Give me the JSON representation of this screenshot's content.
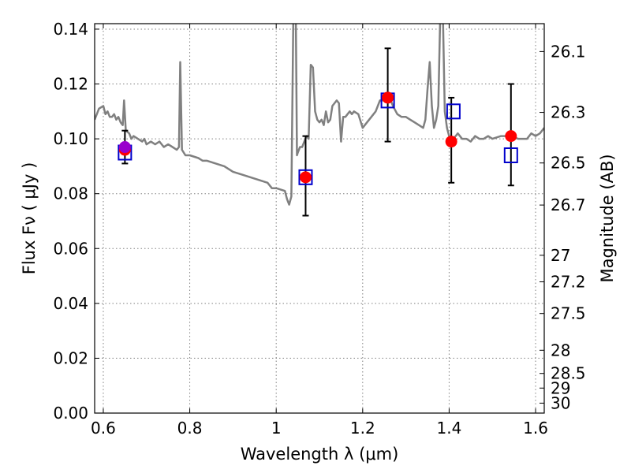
{
  "chart_data": {
    "type": "scatter",
    "xlabel": "Wavelength  λ (μm)",
    "ylabel": "Flux  Fν  ( μJy )",
    "y2label": "Magnitude (AB)",
    "xlim": [
      0.58,
      1.62
    ],
    "ylim": [
      0.0,
      0.142
    ],
    "grid": true,
    "x_ticks": [
      {
        "value": 0.6,
        "label": "0.6"
      },
      {
        "value": 0.8,
        "label": "0.8"
      },
      {
        "value": 1.0,
        "label": "1"
      },
      {
        "value": 1.2,
        "label": "1.2"
      },
      {
        "value": 1.4,
        "label": "1.4"
      },
      {
        "value": 1.6,
        "label": "1.6"
      }
    ],
    "y_ticks": [
      {
        "value": 0.0,
        "label": "0.00"
      },
      {
        "value": 0.02,
        "label": "0.02"
      },
      {
        "value": 0.04,
        "label": "0.04"
      },
      {
        "value": 0.06,
        "label": "0.06"
      },
      {
        "value": 0.08,
        "label": "0.08"
      },
      {
        "value": 0.1,
        "label": "0.10"
      },
      {
        "value": 0.12,
        "label": "0.12"
      },
      {
        "value": 0.14,
        "label": "0.14"
      }
    ],
    "y2_ticks": [
      {
        "value": 26.1,
        "label": "26.1"
      },
      {
        "value": 26.3,
        "label": "26.3"
      },
      {
        "value": 26.5,
        "label": "26.5"
      },
      {
        "value": 26.7,
        "label": "26.7"
      },
      {
        "value": 27.0,
        "label": "27"
      },
      {
        "value": 27.2,
        "label": "27.2"
      },
      {
        "value": 27.5,
        "label": "27.5"
      },
      {
        "value": 28.0,
        "label": "28"
      },
      {
        "value": 28.5,
        "label": "28.5"
      },
      {
        "value": 29.0,
        "label": "29"
      },
      {
        "value": 30.0,
        "label": "30"
      }
    ],
    "series": [
      {
        "kind": "line",
        "color": "#808080",
        "points": [
          [
            0.58,
            0.107
          ],
          [
            0.59,
            0.111
          ],
          [
            0.6,
            0.112
          ],
          [
            0.605,
            0.109
          ],
          [
            0.61,
            0.11
          ],
          [
            0.615,
            0.108
          ],
          [
            0.62,
            0.108
          ],
          [
            0.625,
            0.109
          ],
          [
            0.63,
            0.107
          ],
          [
            0.635,
            0.108
          ],
          [
            0.64,
            0.106
          ],
          [
            0.645,
            0.105
          ],
          [
            0.648,
            0.114
          ],
          [
            0.652,
            0.103
          ],
          [
            0.66,
            0.102
          ],
          [
            0.665,
            0.1
          ],
          [
            0.67,
            0.101
          ],
          [
            0.68,
            0.1
          ],
          [
            0.69,
            0.099
          ],
          [
            0.695,
            0.1
          ],
          [
            0.7,
            0.098
          ],
          [
            0.71,
            0.099
          ],
          [
            0.72,
            0.098
          ],
          [
            0.73,
            0.099
          ],
          [
            0.74,
            0.097
          ],
          [
            0.75,
            0.098
          ],
          [
            0.76,
            0.097
          ],
          [
            0.77,
            0.096
          ],
          [
            0.775,
            0.097
          ],
          [
            0.778,
            0.128
          ],
          [
            0.782,
            0.096
          ],
          [
            0.79,
            0.094
          ],
          [
            0.8,
            0.094
          ],
          [
            0.82,
            0.093
          ],
          [
            0.83,
            0.092
          ],
          [
            0.84,
            0.092
          ],
          [
            0.86,
            0.091
          ],
          [
            0.88,
            0.09
          ],
          [
            0.9,
            0.088
          ],
          [
            0.92,
            0.087
          ],
          [
            0.94,
            0.086
          ],
          [
            0.96,
            0.085
          ],
          [
            0.98,
            0.084
          ],
          [
            0.99,
            0.082
          ],
          [
            1.0,
            0.082
          ],
          [
            1.02,
            0.081
          ],
          [
            1.025,
            0.078
          ],
          [
            1.03,
            0.076
          ],
          [
            1.035,
            0.079
          ],
          [
            1.04,
            0.15
          ],
          [
            1.045,
            0.15
          ],
          [
            1.048,
            0.094
          ],
          [
            1.05,
            0.095
          ],
          [
            1.055,
            0.097
          ],
          [
            1.06,
            0.097
          ],
          [
            1.065,
            0.099
          ],
          [
            1.07,
            0.101
          ],
          [
            1.075,
            0.1
          ],
          [
            1.08,
            0.127
          ],
          [
            1.085,
            0.126
          ],
          [
            1.09,
            0.11
          ],
          [
            1.095,
            0.107
          ],
          [
            1.1,
            0.106
          ],
          [
            1.105,
            0.107
          ],
          [
            1.11,
            0.105
          ],
          [
            1.115,
            0.11
          ],
          [
            1.12,
            0.106
          ],
          [
            1.125,
            0.107
          ],
          [
            1.13,
            0.112
          ],
          [
            1.14,
            0.114
          ],
          [
            1.145,
            0.113
          ],
          [
            1.15,
            0.099
          ],
          [
            1.155,
            0.108
          ],
          [
            1.16,
            0.108
          ],
          [
            1.165,
            0.109
          ],
          [
            1.17,
            0.11
          ],
          [
            1.175,
            0.109
          ],
          [
            1.18,
            0.11
          ],
          [
            1.19,
            0.109
          ],
          [
            1.2,
            0.104
          ],
          [
            1.21,
            0.106
          ],
          [
            1.22,
            0.108
          ],
          [
            1.23,
            0.11
          ],
          [
            1.24,
            0.114
          ],
          [
            1.25,
            0.114
          ],
          [
            1.255,
            0.116
          ],
          [
            1.26,
            0.116
          ],
          [
            1.27,
            0.112
          ],
          [
            1.28,
            0.109
          ],
          [
            1.29,
            0.108
          ],
          [
            1.3,
            0.108
          ],
          [
            1.31,
            0.107
          ],
          [
            1.32,
            0.106
          ],
          [
            1.33,
            0.105
          ],
          [
            1.34,
            0.104
          ],
          [
            1.345,
            0.107
          ],
          [
            1.35,
            0.118
          ],
          [
            1.355,
            0.128
          ],
          [
            1.36,
            0.112
          ],
          [
            1.365,
            0.104
          ],
          [
            1.37,
            0.107
          ],
          [
            1.375,
            0.112
          ],
          [
            1.38,
            0.15
          ],
          [
            1.385,
            0.15
          ],
          [
            1.39,
            0.11
          ],
          [
            1.395,
            0.104
          ],
          [
            1.4,
            0.101
          ],
          [
            1.41,
            0.1
          ],
          [
            1.42,
            0.102
          ],
          [
            1.43,
            0.1
          ],
          [
            1.44,
            0.1
          ],
          [
            1.45,
            0.099
          ],
          [
            1.46,
            0.101
          ],
          [
            1.47,
            0.1
          ],
          [
            1.48,
            0.1
          ],
          [
            1.49,
            0.101
          ],
          [
            1.5,
            0.1
          ],
          [
            1.52,
            0.101
          ],
          [
            1.54,
            0.101
          ],
          [
            1.56,
            0.1
          ],
          [
            1.58,
            0.1
          ],
          [
            1.59,
            0.102
          ],
          [
            1.6,
            0.101
          ],
          [
            1.61,
            0.102
          ],
          [
            1.62,
            0.104
          ]
        ]
      },
      {
        "kind": "errorbar",
        "color": "#000000",
        "points": [
          {
            "x": 0.65,
            "y": 0.097,
            "ylow": 0.091,
            "yhigh": 0.103
          },
          {
            "x": 1.068,
            "y": 0.086,
            "ylow": 0.072,
            "yhigh": 0.101
          },
          {
            "x": 1.258,
            "y": 0.116,
            "ylow": 0.099,
            "yhigh": 0.133
          },
          {
            "x": 1.405,
            "y": 0.099,
            "ylow": 0.084,
            "yhigh": 0.115
          },
          {
            "x": 1.543,
            "y": 0.101,
            "ylow": 0.083,
            "yhigh": 0.12
          }
        ]
      },
      {
        "kind": "scatter",
        "marker": "square-open",
        "color": "#0000cc",
        "points": [
          [
            0.65,
            0.095
          ],
          [
            1.068,
            0.086
          ],
          [
            1.258,
            0.114
          ],
          [
            1.41,
            0.11
          ],
          [
            1.543,
            0.094
          ]
        ]
      },
      {
        "kind": "scatter",
        "marker": "circle",
        "color": "#ff0000",
        "points": [
          [
            0.65,
            0.096
          ],
          [
            1.068,
            0.086
          ],
          [
            1.258,
            0.115
          ],
          [
            1.405,
            0.099
          ],
          [
            1.543,
            0.101
          ]
        ]
      },
      {
        "kind": "scatter",
        "marker": "circle",
        "color": "#9900cc",
        "points": [
          [
            0.65,
            0.097
          ]
        ]
      }
    ]
  }
}
